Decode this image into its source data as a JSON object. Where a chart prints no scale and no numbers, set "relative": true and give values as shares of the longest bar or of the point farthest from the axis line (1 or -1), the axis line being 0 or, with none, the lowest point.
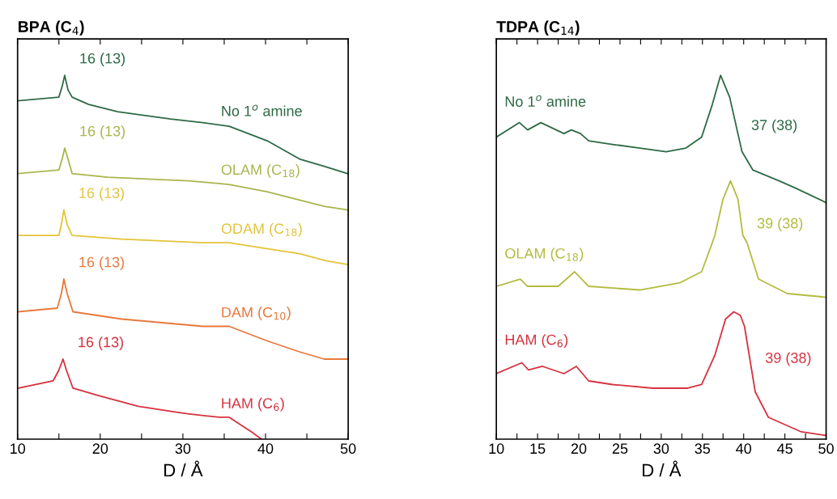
{
  "chart_data": [
    {
      "type": "line",
      "title": "BPA (C$_{4}$)",
      "xlabel": "D / Å",
      "relative": true,
      "xlim": [
        10,
        50
      ],
      "xticks": [
        10,
        {
          "value": 15,
          "label": null
        },
        20,
        {
          "value": 25,
          "label": null
        },
        30,
        {
          "value": 35,
          "label": null
        },
        40,
        {
          "value": 45,
          "label": null
        },
        50
      ],
      "tick_labels": "x",
      "grid": false,
      "marker": "none",
      "line_style": "solid",
      "series": [
        {
          "name": "No 1$^{o}$ amine",
          "color": "#2d6a45",
          "x": [
            10.1,
            15.0,
            15.4,
            15.7,
            16.1,
            16.6,
            18.6,
            22.1,
            28.5,
            32.4,
            35.6,
            40.2,
            44.1,
            47.1,
            49.9
          ],
          "values": [
            0.93,
            0.94,
            0.97,
            1.0,
            0.96,
            0.94,
            0.92,
            0.9,
            0.88,
            0.87,
            0.86,
            0.82,
            0.77,
            0.75,
            0.73
          ]
        },
        {
          "name": "OLAM (C$_{18}$)",
          "color": "#a9b54c",
          "x": [
            10.1,
            15.0,
            15.4,
            15.7,
            16.1,
            16.6,
            20.9,
            30.7,
            35.6,
            40.2,
            47.1,
            49.9
          ],
          "values": [
            0.73,
            0.74,
            0.77,
            0.8,
            0.77,
            0.73,
            0.72,
            0.71,
            0.7,
            0.68,
            0.64,
            0.63
          ]
        },
        {
          "name": "ODAM (C$_{18}$)",
          "color": "#e3c43a",
          "x": [
            10.1,
            15.0,
            15.3,
            15.6,
            16.0,
            16.6,
            22.6,
            32.4,
            35.6,
            41.2,
            44.1,
            47.4,
            49.9
          ],
          "values": [
            0.56,
            0.56,
            0.59,
            0.63,
            0.59,
            0.56,
            0.55,
            0.54,
            0.54,
            0.52,
            0.51,
            0.49,
            0.48
          ]
        },
        {
          "name": "DAM (C$_{10}$)",
          "color": "#e8783c",
          "x": [
            10.1,
            14.8,
            15.3,
            15.6,
            16.0,
            16.7,
            22.6,
            32.4,
            35.6,
            40.2,
            44.1,
            47.1,
            49.9
          ],
          "values": [
            0.35,
            0.36,
            0.4,
            0.44,
            0.4,
            0.35,
            0.33,
            0.31,
            0.31,
            0.27,
            0.24,
            0.22,
            0.22
          ]
        },
        {
          "name": "HAM (C$_{6}$)",
          "color": "#d6323f",
          "x": [
            10.1,
            14.3,
            15.0,
            15.5,
            15.9,
            16.7,
            19.7,
            24.6,
            30.4,
            34.4,
            35.6,
            38.3,
            39.5
          ],
          "values": [
            0.14,
            0.16,
            0.19,
            0.22,
            0.19,
            0.14,
            0.12,
            0.09,
            0.07,
            0.06,
            0.06,
            0.02,
            0.0
          ]
        }
      ],
      "annotations": [
        {
          "text": "16 (13)",
          "x": 15.7,
          "y": 1.0
        },
        {
          "text": "16 (13)",
          "x": 15.7,
          "y": 0.8
        },
        {
          "text": "16 (13)",
          "x": 15.6,
          "y": 0.63
        },
        {
          "text": "16 (13)",
          "x": 15.6,
          "y": 0.44
        },
        {
          "text": "16 (13)",
          "x": 15.5,
          "y": 0.22
        }
      ]
    },
    {
      "type": "line",
      "title": "TDPA (C$_{14}$)",
      "xlabel": "D / Å",
      "relative": true,
      "xlim": [
        10,
        50
      ],
      "xticks": [
        10,
        {
          "value": 12.5,
          "label": null
        },
        15,
        {
          "value": 17.5,
          "label": null
        },
        20,
        {
          "value": 22.5,
          "label": null
        },
        25,
        {
          "value": 27.5,
          "label": null
        },
        30,
        {
          "value": 32.5,
          "label": null
        },
        35,
        {
          "value": 37.5,
          "label": null
        },
        40,
        {
          "value": 42.5,
          "label": null
        },
        45,
        {
          "value": 47.5,
          "label": null
        },
        50
      ],
      "tick_labels": "x",
      "grid": false,
      "marker": "none",
      "line_style": "solid",
      "series": [
        {
          "name": "No 1$^{o}$ amine",
          "color": "#2d6a45",
          "x": [
            10,
            12.8,
            13.8,
            15.4,
            18.2,
            19.1,
            20.2,
            21.2,
            24.1,
            27.4,
            30.6,
            33.0,
            34.9,
            36.2,
            37.2,
            38.3,
            39.8,
            41.1,
            44.3,
            46.3,
            50
          ],
          "values": [
            0.83,
            0.87,
            0.85,
            0.87,
            0.84,
            0.85,
            0.84,
            0.82,
            0.81,
            0.8,
            0.79,
            0.8,
            0.83,
            0.92,
            1.0,
            0.94,
            0.79,
            0.74,
            0.71,
            0.69,
            0.65
          ]
        },
        {
          "name": "OLAM (C$_{18}$)",
          "color": "#b3bc3e",
          "x": [
            10,
            12.9,
            13.8,
            17.5,
            19.5,
            21.2,
            27.4,
            32.3,
            34.9,
            36.2,
            36.5,
            37.5,
            38.4,
            39.3,
            39.9,
            40.4,
            41.8,
            45.3,
            50
          ],
          "values": [
            0.42,
            0.44,
            0.42,
            0.42,
            0.46,
            0.42,
            0.41,
            0.43,
            0.46,
            0.54,
            0.56,
            0.66,
            0.71,
            0.66,
            0.56,
            0.54,
            0.44,
            0.4,
            0.39
          ]
        },
        {
          "name": "HAM (C$_{6}$)",
          "color": "#d6323f",
          "x": [
            10,
            13.1,
            13.9,
            15.6,
            18.2,
            19.7,
            21.2,
            24.1,
            29.0,
            33.2,
            34.9,
            36.5,
            37.8,
            38.8,
            39.6,
            40.1,
            41.4,
            43.0,
            47.0,
            50
          ],
          "values": [
            0.18,
            0.21,
            0.19,
            0.2,
            0.18,
            0.2,
            0.16,
            0.15,
            0.14,
            0.14,
            0.15,
            0.23,
            0.33,
            0.35,
            0.34,
            0.31,
            0.13,
            0.06,
            0.02,
            0.01
          ]
        }
      ],
      "annotations": [
        {
          "text": "37 (38)",
          "x": 39.0,
          "y": 0.86
        },
        {
          "text": "39 (38)",
          "x": 39.7,
          "y": 0.59
        },
        {
          "text": "39 (38)",
          "x": 40.7,
          "y": 0.22
        }
      ]
    }
  ]
}
